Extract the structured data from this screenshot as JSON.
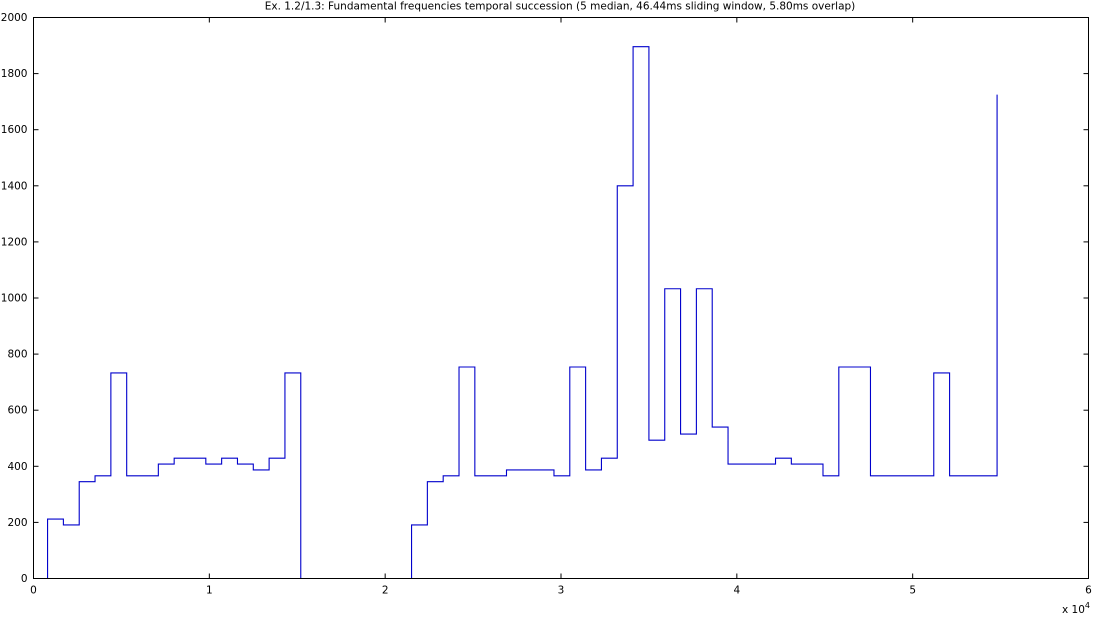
{
  "chart_data": {
    "type": "line",
    "step": true,
    "title": "Ex. 1.2/1.3: Fundamental frequencies temporal succession (5 median, 46.44ms sliding window, 5.80ms overlap)",
    "xlabel": "",
    "ylabel": "",
    "xlim": [
      0,
      60000
    ],
    "ylim": [
      0,
      2000
    ],
    "x_ticks": [
      0,
      10000,
      20000,
      30000,
      40000,
      50000,
      60000
    ],
    "x_tick_labels": [
      "0",
      "1",
      "2",
      "3",
      "4",
      "5",
      "6"
    ],
    "x_exponent_label": "x 10",
    "x_exponent_power": "4",
    "y_ticks": [
      0,
      200,
      400,
      600,
      800,
      1000,
      1200,
      1400,
      1600,
      1800,
      2000
    ],
    "y_tick_labels": [
      "0",
      "200",
      "400",
      "600",
      "800",
      "1000",
      "1200",
      "1400",
      "1600",
      "1800",
      "2000"
    ],
    "grid": false,
    "legend": "none",
    "line_color": "#0000cc",
    "series": [
      {
        "x": [
          0,
          800,
          1700,
          2600,
          3500,
          4400,
          5300,
          7100,
          8000,
          8900,
          9800,
          10700,
          11600,
          12500,
          13400,
          14300,
          15200,
          15201,
          21500,
          21501,
          22400,
          23300,
          24200,
          25100,
          26900,
          29600,
          30500,
          31400,
          32300,
          33200,
          34100,
          35000,
          35900,
          36800,
          37700,
          38600,
          39500,
          42200,
          43100,
          44900,
          45800,
          47600,
          51200,
          52100,
          54800,
          54801
        ],
        "y": [
          0,
          212,
          191,
          345,
          366,
          733,
          366,
          408,
          429,
          429,
          408,
          429,
          408,
          387,
          429,
          733,
          0,
          0,
          0,
          191,
          345,
          366,
          754,
          366,
          387,
          366,
          754,
          387,
          429,
          1400,
          1896,
          493,
          1033,
          515,
          1033,
          540,
          408,
          429,
          408,
          366,
          754,
          366,
          733,
          366,
          366,
          1725
        ]
      }
    ]
  }
}
